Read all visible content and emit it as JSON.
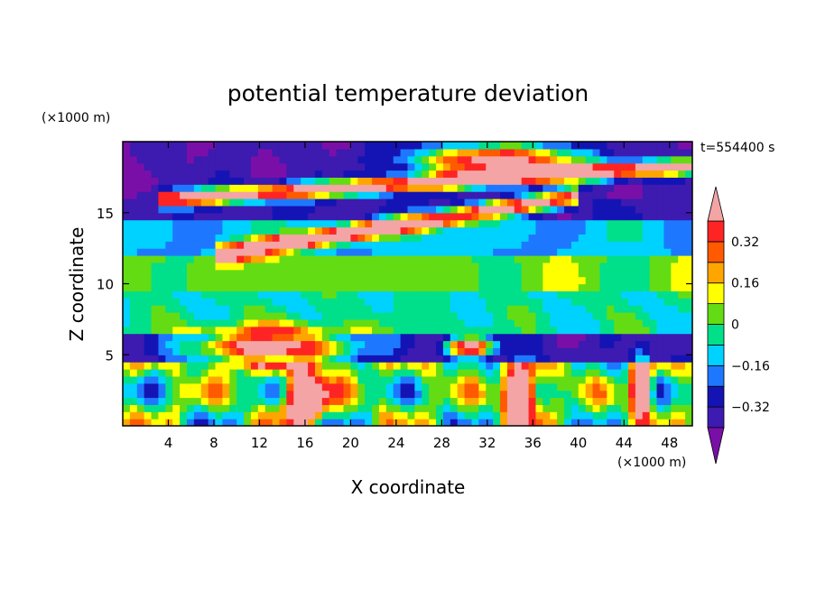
{
  "chart_data": {
    "type": "heatmap",
    "title": "potential temperature deviation",
    "xlabel": "X coordinate",
    "ylabel": "Z coordinate",
    "x_unit": "(×1000 m)",
    "y_unit": "(×1000 m)",
    "time_label": "t=554400 s",
    "xlim": [
      0,
      50
    ],
    "ylim": [
      0,
      20
    ],
    "x_ticks": [
      "4",
      "8",
      "12",
      "16",
      "20",
      "24",
      "28",
      "32",
      "36",
      "40",
      "44",
      "48"
    ],
    "y_ticks": [
      "5",
      "10",
      "15"
    ],
    "x_tick_values": [
      4,
      8,
      12,
      16,
      20,
      24,
      28,
      32,
      36,
      40,
      44,
      48
    ],
    "y_tick_values": [
      5,
      10,
      15
    ],
    "colorbar": {
      "levels": [
        -0.4,
        -0.32,
        -0.24,
        -0.16,
        -0.08,
        0,
        0.08,
        0.16,
        0.24,
        0.32,
        0.4
      ],
      "labels": [
        "0.32",
        "0.16",
        "0",
        "−0.16",
        "−0.32"
      ],
      "label_values": [
        0.32,
        0.16,
        0,
        -0.16,
        -0.32
      ],
      "colors": [
        "#7a0fa8",
        "#3d1ab0",
        "#1414b4",
        "#1e78ff",
        "#00d2ff",
        "#00e08a",
        "#64dc14",
        "#ffff00",
        "#ffa500",
        "#ff5a00",
        "#ff2424",
        "#f4a4a4"
      ]
    }
  }
}
